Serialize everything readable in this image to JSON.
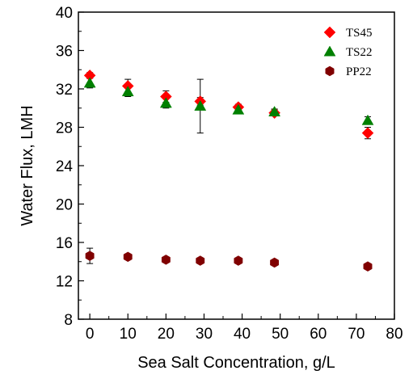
{
  "chart_data": {
    "type": "scatter",
    "xlabel": "Sea Salt Concentration, g/L",
    "ylabel": "Water Flux, LMH",
    "xlim": [
      -3,
      80
    ],
    "ylim": [
      8,
      40
    ],
    "x_ticks": [
      0,
      10,
      20,
      30,
      40,
      50,
      60,
      70,
      80
    ],
    "y_ticks": [
      8,
      12,
      16,
      20,
      24,
      28,
      32,
      36,
      40
    ],
    "x_tick_labels": [
      "0",
      "10",
      "20",
      "30",
      "40",
      "50",
      "60",
      "70",
      "80"
    ],
    "y_tick_labels": [
      "8",
      "12",
      "16",
      "20",
      "24",
      "28",
      "32",
      "36",
      "40"
    ],
    "grid": false,
    "legend_position": "top-right",
    "series": [
      {
        "name": "TS45",
        "marker": "diamond",
        "color": "#ff0000",
        "points": [
          {
            "x": 0,
            "y": 33.4,
            "err": 0.3
          },
          {
            "x": 10,
            "y": 32.3,
            "err": 0.7
          },
          {
            "x": 20,
            "y": 31.2,
            "err": 0.6
          },
          {
            "x": 29,
            "y": 30.7,
            "err": 0.4
          },
          {
            "x": 39,
            "y": 30.1,
            "err": 0.3
          },
          {
            "x": 48.5,
            "y": 29.5,
            "err": 0.3
          },
          {
            "x": 73,
            "y": 27.4,
            "err": 0.6
          }
        ]
      },
      {
        "name": "TS22",
        "marker": "triangle",
        "color": "#008000",
        "points": [
          {
            "x": 0,
            "y": 32.6,
            "err": 0.5
          },
          {
            "x": 10,
            "y": 31.7,
            "err": 0.5
          },
          {
            "x": 20,
            "y": 30.5,
            "err": 0.5
          },
          {
            "x": 29,
            "y": 30.2,
            "err": 2.8
          },
          {
            "x": 39,
            "y": 29.8,
            "err": 0.3
          },
          {
            "x": 48.5,
            "y": 29.6,
            "err": 0.3
          },
          {
            "x": 73,
            "y": 28.7,
            "err": 0.4
          }
        ]
      },
      {
        "name": "PP22",
        "marker": "hexagon",
        "color": "#800000",
        "points": [
          {
            "x": 0,
            "y": 14.6,
            "err": 0.8
          },
          {
            "x": 10,
            "y": 14.5,
            "err": 0.2
          },
          {
            "x": 20,
            "y": 14.2,
            "err": 0.2
          },
          {
            "x": 29,
            "y": 14.1,
            "err": 0.2
          },
          {
            "x": 39,
            "y": 14.1,
            "err": 0.2
          },
          {
            "x": 48.5,
            "y": 13.9,
            "err": 0.2
          },
          {
            "x": 73,
            "y": 13.5,
            "err": 0.2
          }
        ]
      }
    ]
  }
}
